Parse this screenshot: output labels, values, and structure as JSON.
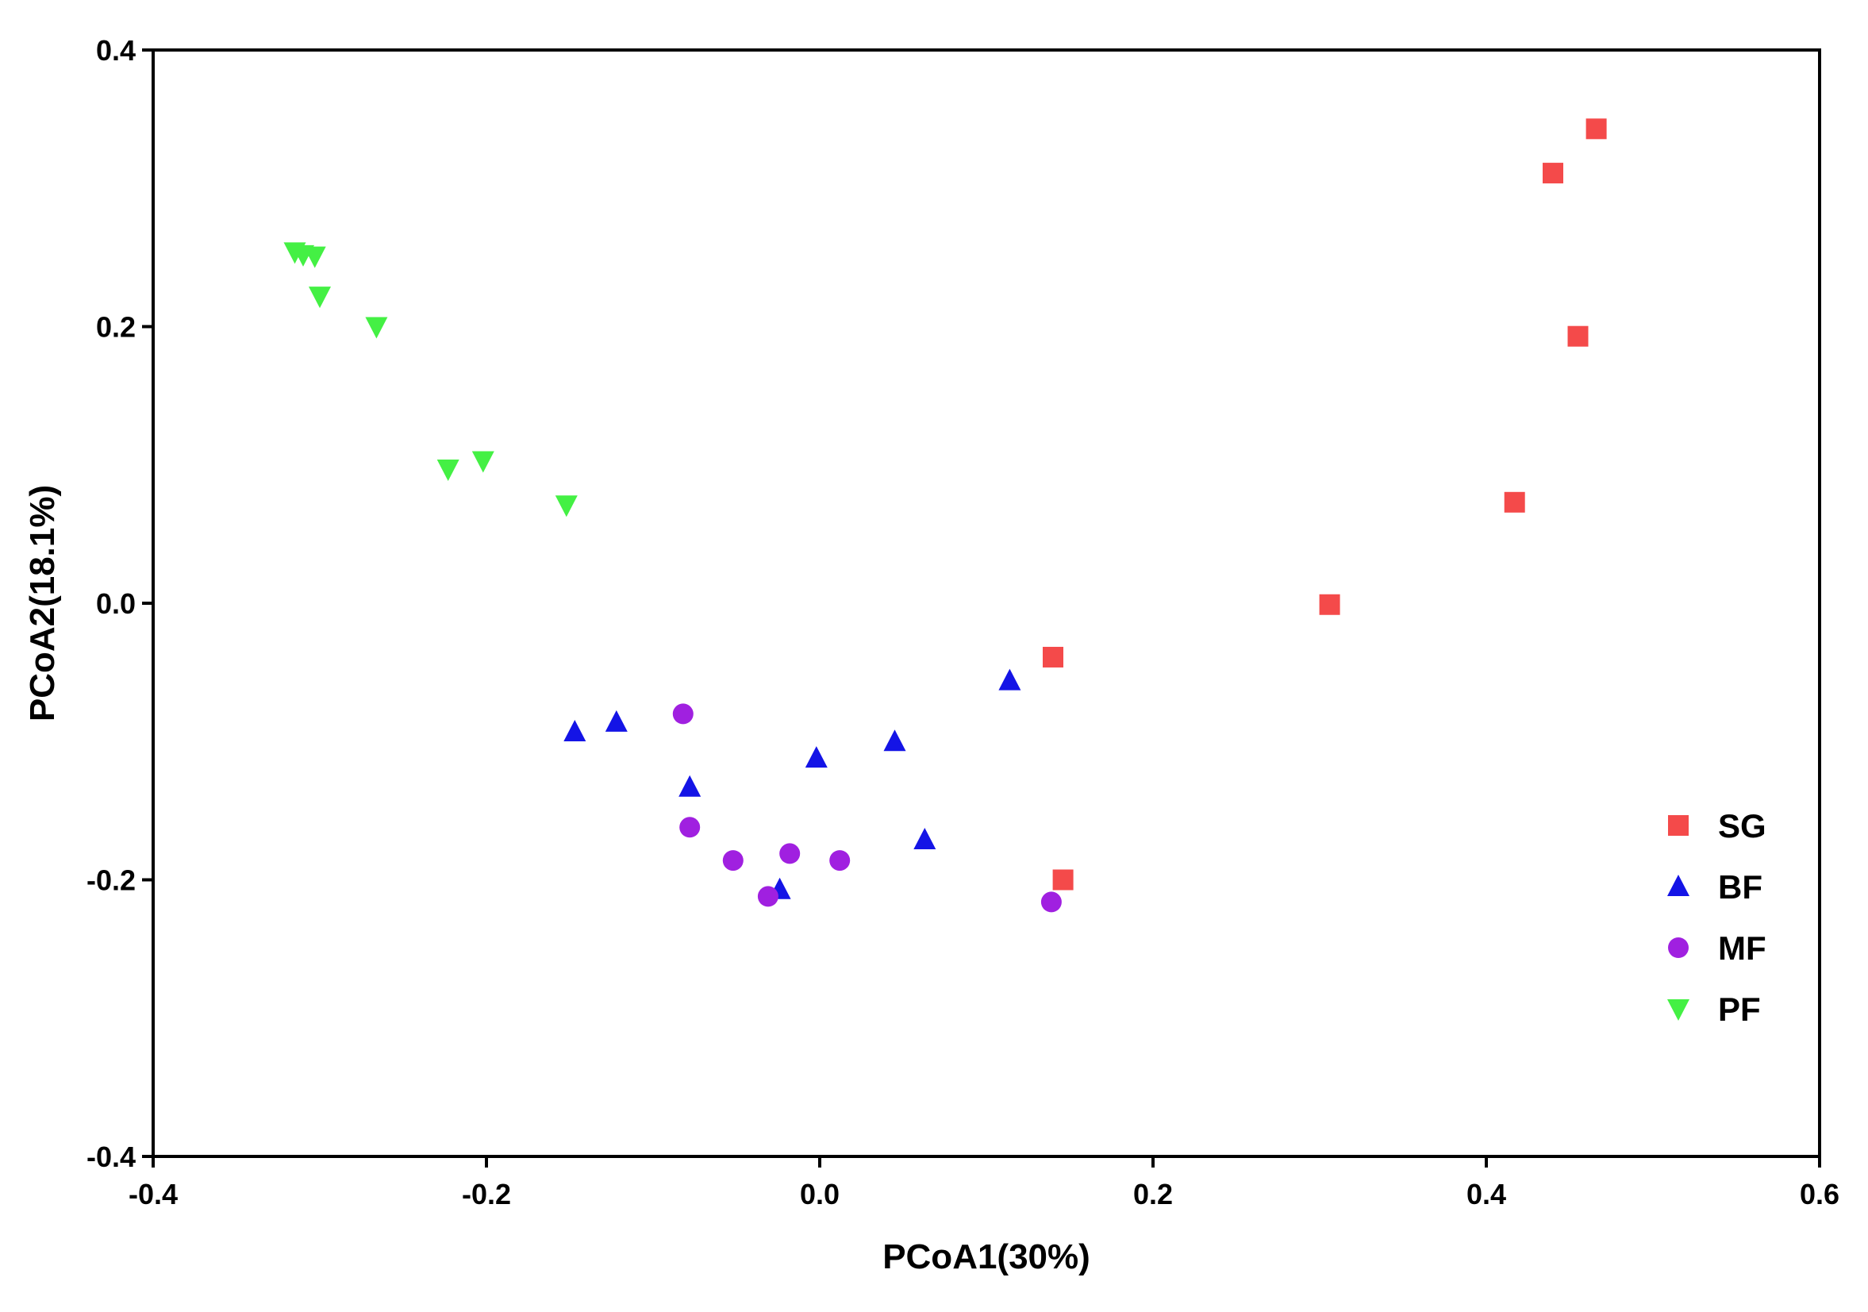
{
  "chart_data": {
    "type": "scatter",
    "xlabel": "PCoA1(30%)",
    "ylabel": "PCoA2(18.1%)",
    "xlim": [
      -0.4,
      0.6
    ],
    "ylim": [
      -0.4,
      0.4
    ],
    "x_ticks": [
      -0.4,
      -0.2,
      0.0,
      0.2,
      0.4,
      0.6
    ],
    "y_ticks": [
      0.4,
      0.2,
      0.0,
      -0.2,
      -0.4
    ],
    "x_tick_labels": [
      "-0.4",
      "-0.2",
      "0.0",
      "0.2",
      "0.4",
      "0.6"
    ],
    "y_tick_labels": [
      "0.4",
      "0.2",
      "0.0",
      "-0.2",
      "-0.4"
    ],
    "grid": false,
    "legend_position": "bottom-right",
    "series": [
      {
        "name": "SG",
        "marker": "square",
        "color": "#f44a4a",
        "points": [
          [
            0.466,
            0.343
          ],
          [
            0.44,
            0.311
          ],
          [
            0.455,
            0.193
          ],
          [
            0.417,
            0.073
          ],
          [
            0.306,
            -0.001
          ],
          [
            0.14,
            -0.039
          ],
          [
            0.146,
            -0.2
          ]
        ]
      },
      {
        "name": "BF",
        "marker": "triangle-up",
        "color": "#1414e6",
        "points": [
          [
            -0.147,
            -0.093
          ],
          [
            -0.122,
            -0.086
          ],
          [
            -0.078,
            -0.133
          ],
          [
            -0.002,
            -0.112
          ],
          [
            0.045,
            -0.1
          ],
          [
            0.114,
            -0.056
          ],
          [
            0.063,
            -0.171
          ],
          [
            -0.024,
            -0.207
          ]
        ]
      },
      {
        "name": "MF",
        "marker": "circle",
        "color": "#a020e0",
        "points": [
          [
            -0.082,
            -0.08
          ],
          [
            -0.078,
            -0.162
          ],
          [
            -0.052,
            -0.186
          ],
          [
            -0.018,
            -0.181
          ],
          [
            0.012,
            -0.186
          ],
          [
            -0.031,
            -0.212
          ],
          [
            0.139,
            -0.216
          ]
        ]
      },
      {
        "name": "PF",
        "marker": "triangle-down",
        "color": "#44f044",
        "points": [
          [
            -0.315,
            0.254
          ],
          [
            -0.31,
            0.252
          ],
          [
            -0.303,
            0.251
          ],
          [
            -0.3,
            0.222
          ],
          [
            -0.266,
            0.2
          ],
          [
            -0.223,
            0.097
          ],
          [
            -0.202,
            0.103
          ],
          [
            -0.152,
            0.071
          ]
        ]
      }
    ]
  }
}
